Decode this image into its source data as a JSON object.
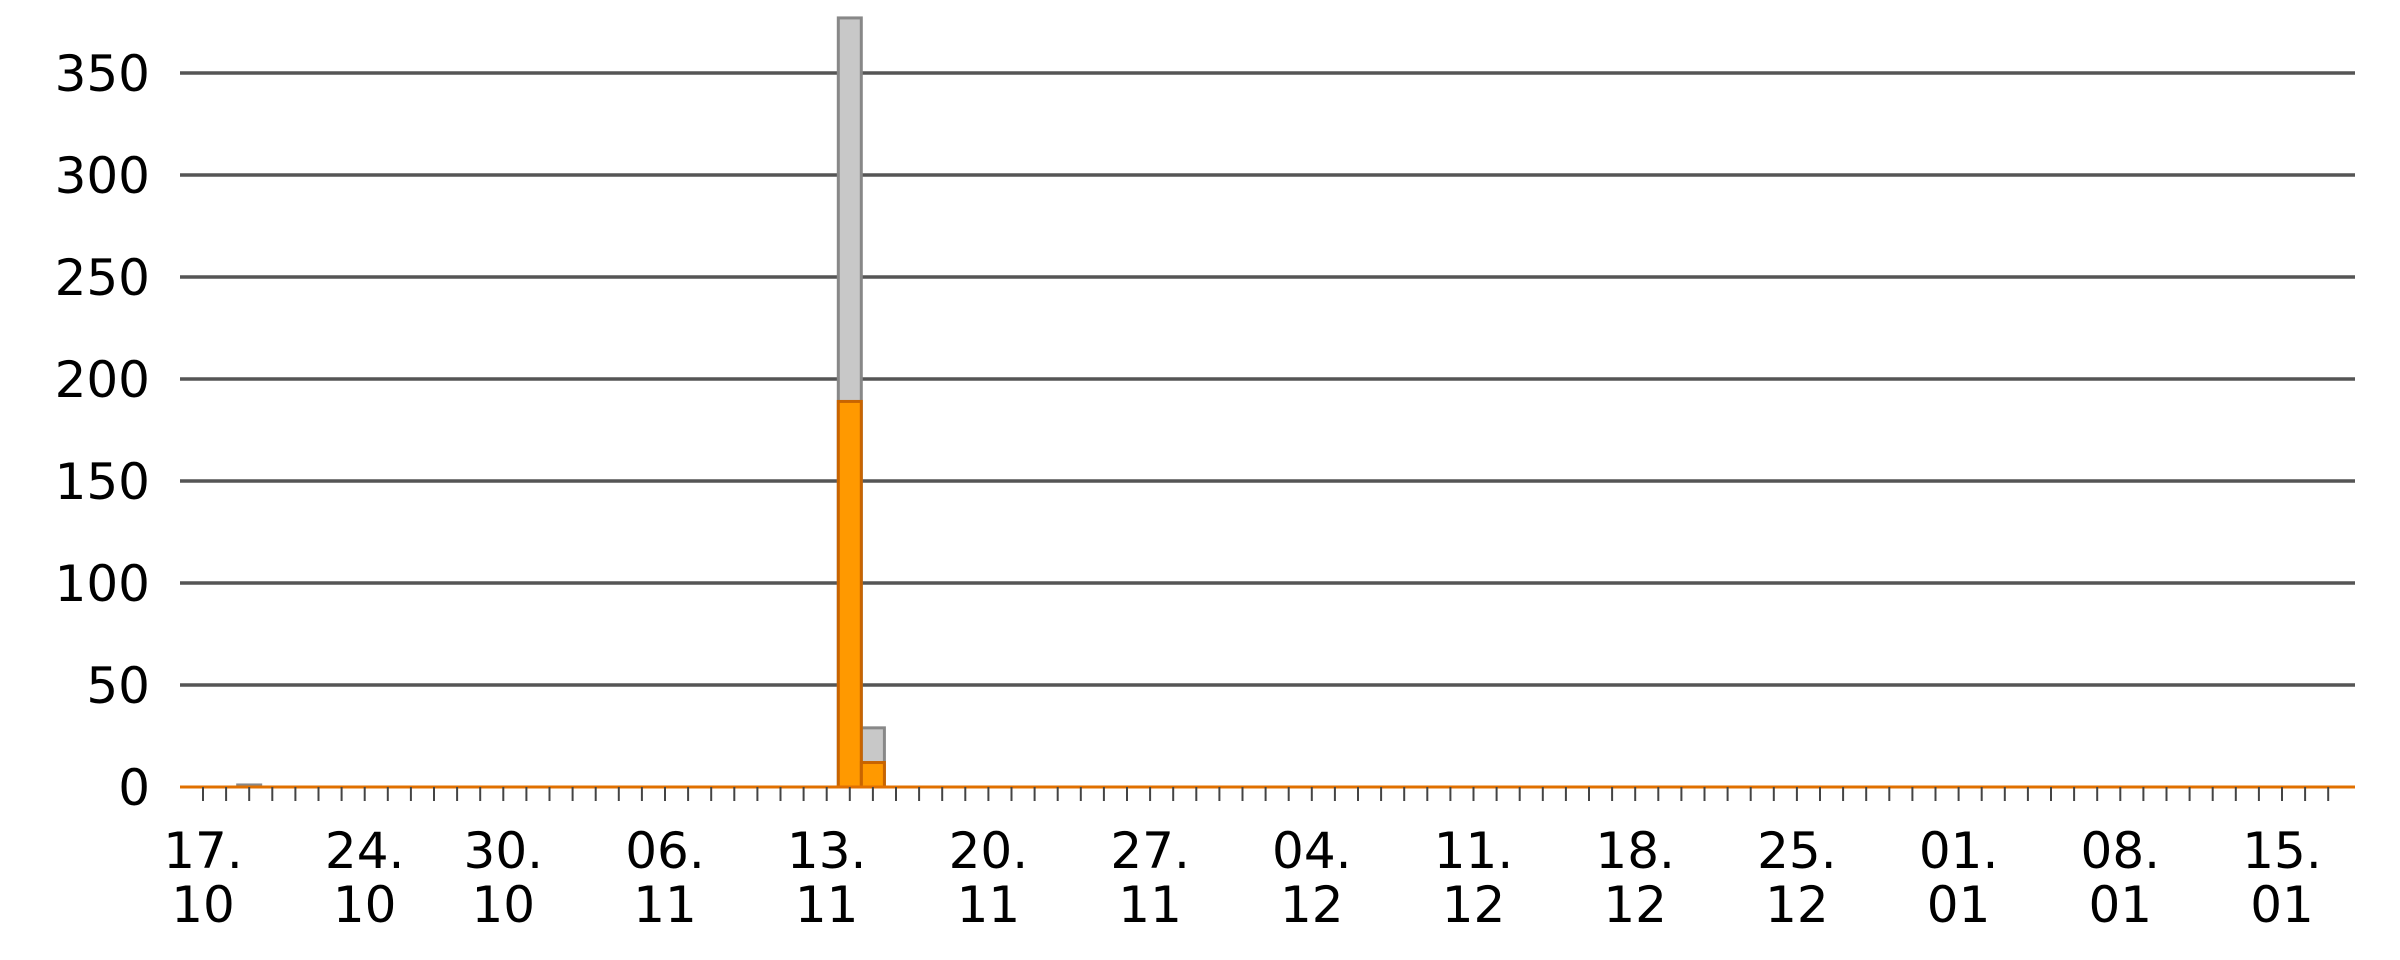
{
  "chart_data": {
    "type": "bar",
    "stacked": "overlay",
    "title": "",
    "xlabel": "",
    "ylabel": "",
    "ylim": [
      0,
      380
    ],
    "yticks": [
      0,
      50,
      100,
      150,
      200,
      250,
      300,
      350
    ],
    "grid": true,
    "legend": "none",
    "x_range": [
      "2022-10-17",
      "2023-01-17"
    ],
    "x_tick_labels": [
      {
        "date": "2022-10-17",
        "line1": "17.",
        "line2": "10"
      },
      {
        "date": "2022-10-24",
        "line1": "24.",
        "line2": "10"
      },
      {
        "date": "2022-10-30",
        "line1": "30.",
        "line2": "10"
      },
      {
        "date": "2022-11-06",
        "line1": "06.",
        "line2": "11"
      },
      {
        "date": "2022-11-13",
        "line1": "13.",
        "line2": "11"
      },
      {
        "date": "2022-11-20",
        "line1": "20.",
        "line2": "11"
      },
      {
        "date": "2022-11-27",
        "line1": "27.",
        "line2": "11"
      },
      {
        "date": "2022-12-04",
        "line1": "04.",
        "line2": "12"
      },
      {
        "date": "2022-12-11",
        "line1": "11.",
        "line2": "12"
      },
      {
        "date": "2022-12-18",
        "line1": "18.",
        "line2": "12"
      },
      {
        "date": "2022-12-25",
        "line1": "25.",
        "line2": "12"
      },
      {
        "date": "2023-01-01",
        "line1": "01.",
        "line2": "01"
      },
      {
        "date": "2023-01-08",
        "line1": "08.",
        "line2": "01"
      },
      {
        "date": "2023-01-15",
        "line1": "15.",
        "line2": "01"
      }
    ],
    "series": [
      {
        "color": "#c8c8c8",
        "points": [
          {
            "date": "2022-10-19",
            "value": 1
          },
          {
            "date": "2022-11-14",
            "value": 377
          },
          {
            "date": "2022-11-15",
            "value": 29
          }
        ]
      },
      {
        "color": "#ff9900",
        "points": [
          {
            "date": "2022-11-14",
            "value": 189
          },
          {
            "date": "2022-11-15",
            "value": 12
          }
        ]
      }
    ]
  }
}
